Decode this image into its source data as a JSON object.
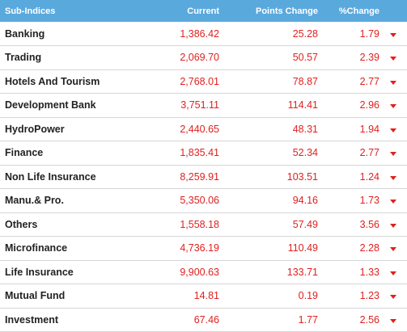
{
  "header": {
    "col_name": "Sub-Indices",
    "col_current": "Current",
    "col_points": "Points Change",
    "col_pct": "%Change"
  },
  "rows": [
    {
      "name": "Banking",
      "current": "1,386.42",
      "points": "25.28",
      "pct": "1.79"
    },
    {
      "name": "Trading",
      "current": "2,069.70",
      "points": "50.57",
      "pct": "2.39"
    },
    {
      "name": "Hotels And Tourism",
      "current": "2,768.01",
      "points": "78.87",
      "pct": "2.77"
    },
    {
      "name": "Development Bank",
      "current": "3,751.11",
      "points": "114.41",
      "pct": "2.96"
    },
    {
      "name": "HydroPower",
      "current": "2,440.65",
      "points": "48.31",
      "pct": "1.94"
    },
    {
      "name": "Finance",
      "current": "1,835.41",
      "points": "52.34",
      "pct": "2.77"
    },
    {
      "name": "Non Life Insurance",
      "current": "8,259.91",
      "points": "103.51",
      "pct": "1.24"
    },
    {
      "name": "Manu.& Pro.",
      "current": "5,350.06",
      "points": "94.16",
      "pct": "1.73"
    },
    {
      "name": "Others",
      "current": "1,558.18",
      "points": "57.49",
      "pct": "3.56"
    },
    {
      "name": "Microfinance",
      "current": "4,736.19",
      "points": "110.49",
      "pct": "2.28"
    },
    {
      "name": "Life Insurance",
      "current": "9,900.63",
      "points": "133.71",
      "pct": "1.33"
    },
    {
      "name": "Mutual Fund",
      "current": "14.81",
      "points": "0.19",
      "pct": "1.23"
    },
    {
      "name": "Investment",
      "current": "67.46",
      "points": "1.77",
      "pct": "2.56"
    }
  ],
  "colors": {
    "header_bg": "#5aa9dd",
    "down": "#e02020",
    "divider": "#d6d6d6"
  },
  "icons": {
    "trend": "down-arrow-icon"
  }
}
